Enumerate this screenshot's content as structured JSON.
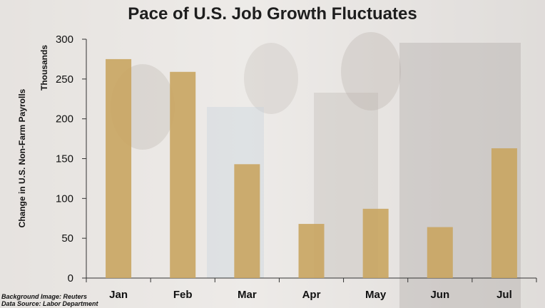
{
  "chart_data": {
    "type": "bar",
    "title": "Pace of U.S. Job Growth Fluctuates",
    "ylabel": "Change in U.S. Non-Farm Payrolls",
    "yunit": "Thousands",
    "categories": [
      "Jan",
      "Feb",
      "Mar",
      "Apr",
      "May",
      "Jun",
      "Jul"
    ],
    "values": [
      275,
      259,
      143,
      68,
      87,
      64,
      163
    ],
    "ylim": [
      0,
      300
    ],
    "yticks": [
      0,
      50,
      100,
      150,
      200,
      250,
      300
    ],
    "grid": false,
    "bar_color": "#C9A560"
  },
  "credits": {
    "background": "Background Image: Reuters",
    "source": "Data Source: Labor Department"
  }
}
